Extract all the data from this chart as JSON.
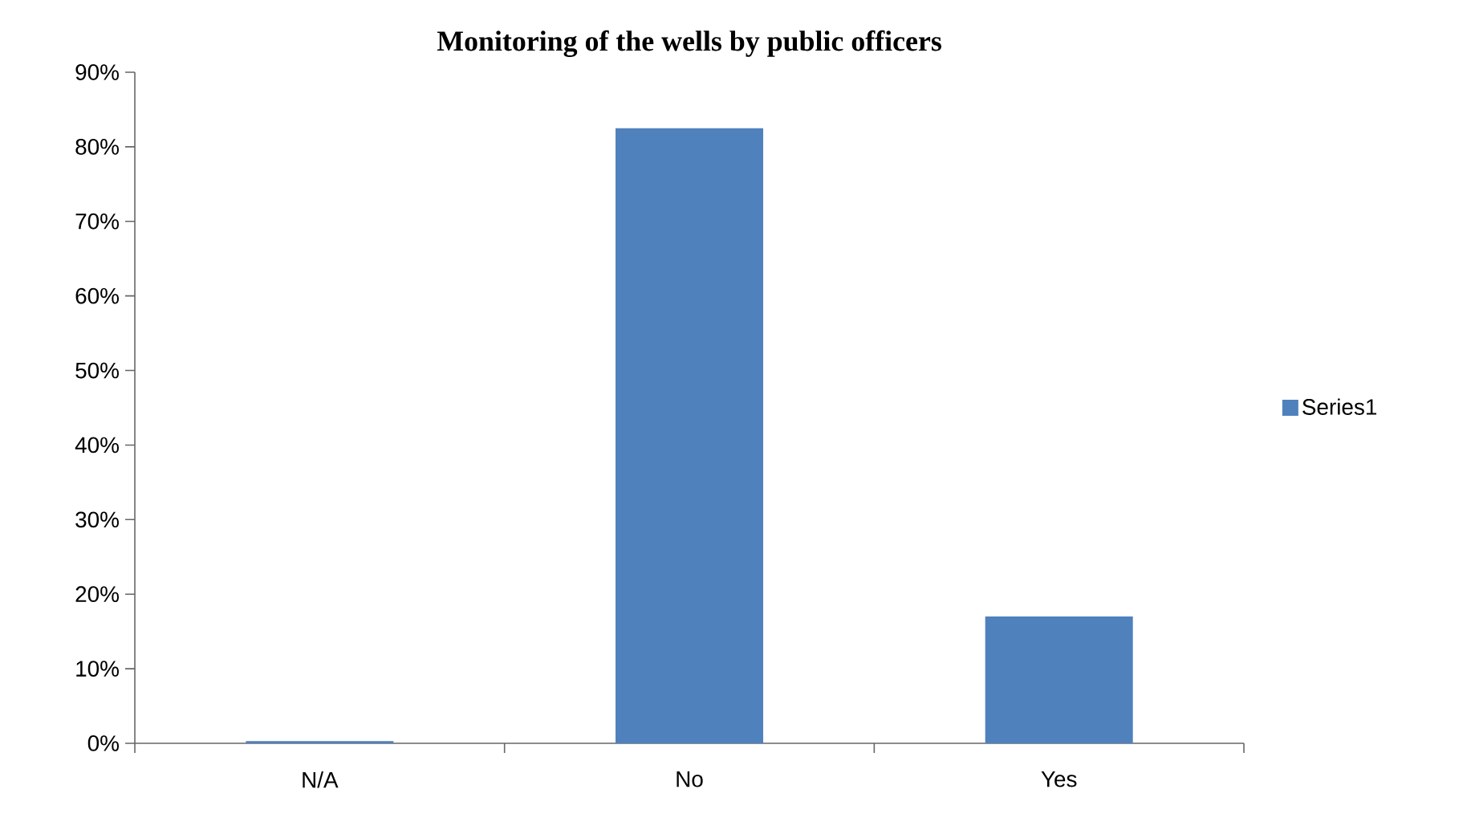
{
  "chart_data": {
    "type": "bar",
    "title": "Monitoring of the wells by public officers",
    "categories": [
      "N/A",
      "No",
      "Yes"
    ],
    "series": [
      {
        "name": "Series1",
        "color": "#4f81bd",
        "values": [
          0.3,
          82.5,
          17.0
        ]
      }
    ],
    "ylim": [
      0,
      90
    ],
    "yticks": [
      {
        "value": 0,
        "label": "0%"
      },
      {
        "value": 10,
        "label": "10%"
      },
      {
        "value": 20,
        "label": "20%"
      },
      {
        "value": 30,
        "label": "30%"
      },
      {
        "value": 40,
        "label": "40%"
      },
      {
        "value": 50,
        "label": "50%"
      },
      {
        "value": 60,
        "label": "60%"
      },
      {
        "value": 70,
        "label": "70%"
      },
      {
        "value": 80,
        "label": "80%"
      },
      {
        "value": 90,
        "label": "90%"
      }
    ],
    "grid": false,
    "legend": "right"
  }
}
